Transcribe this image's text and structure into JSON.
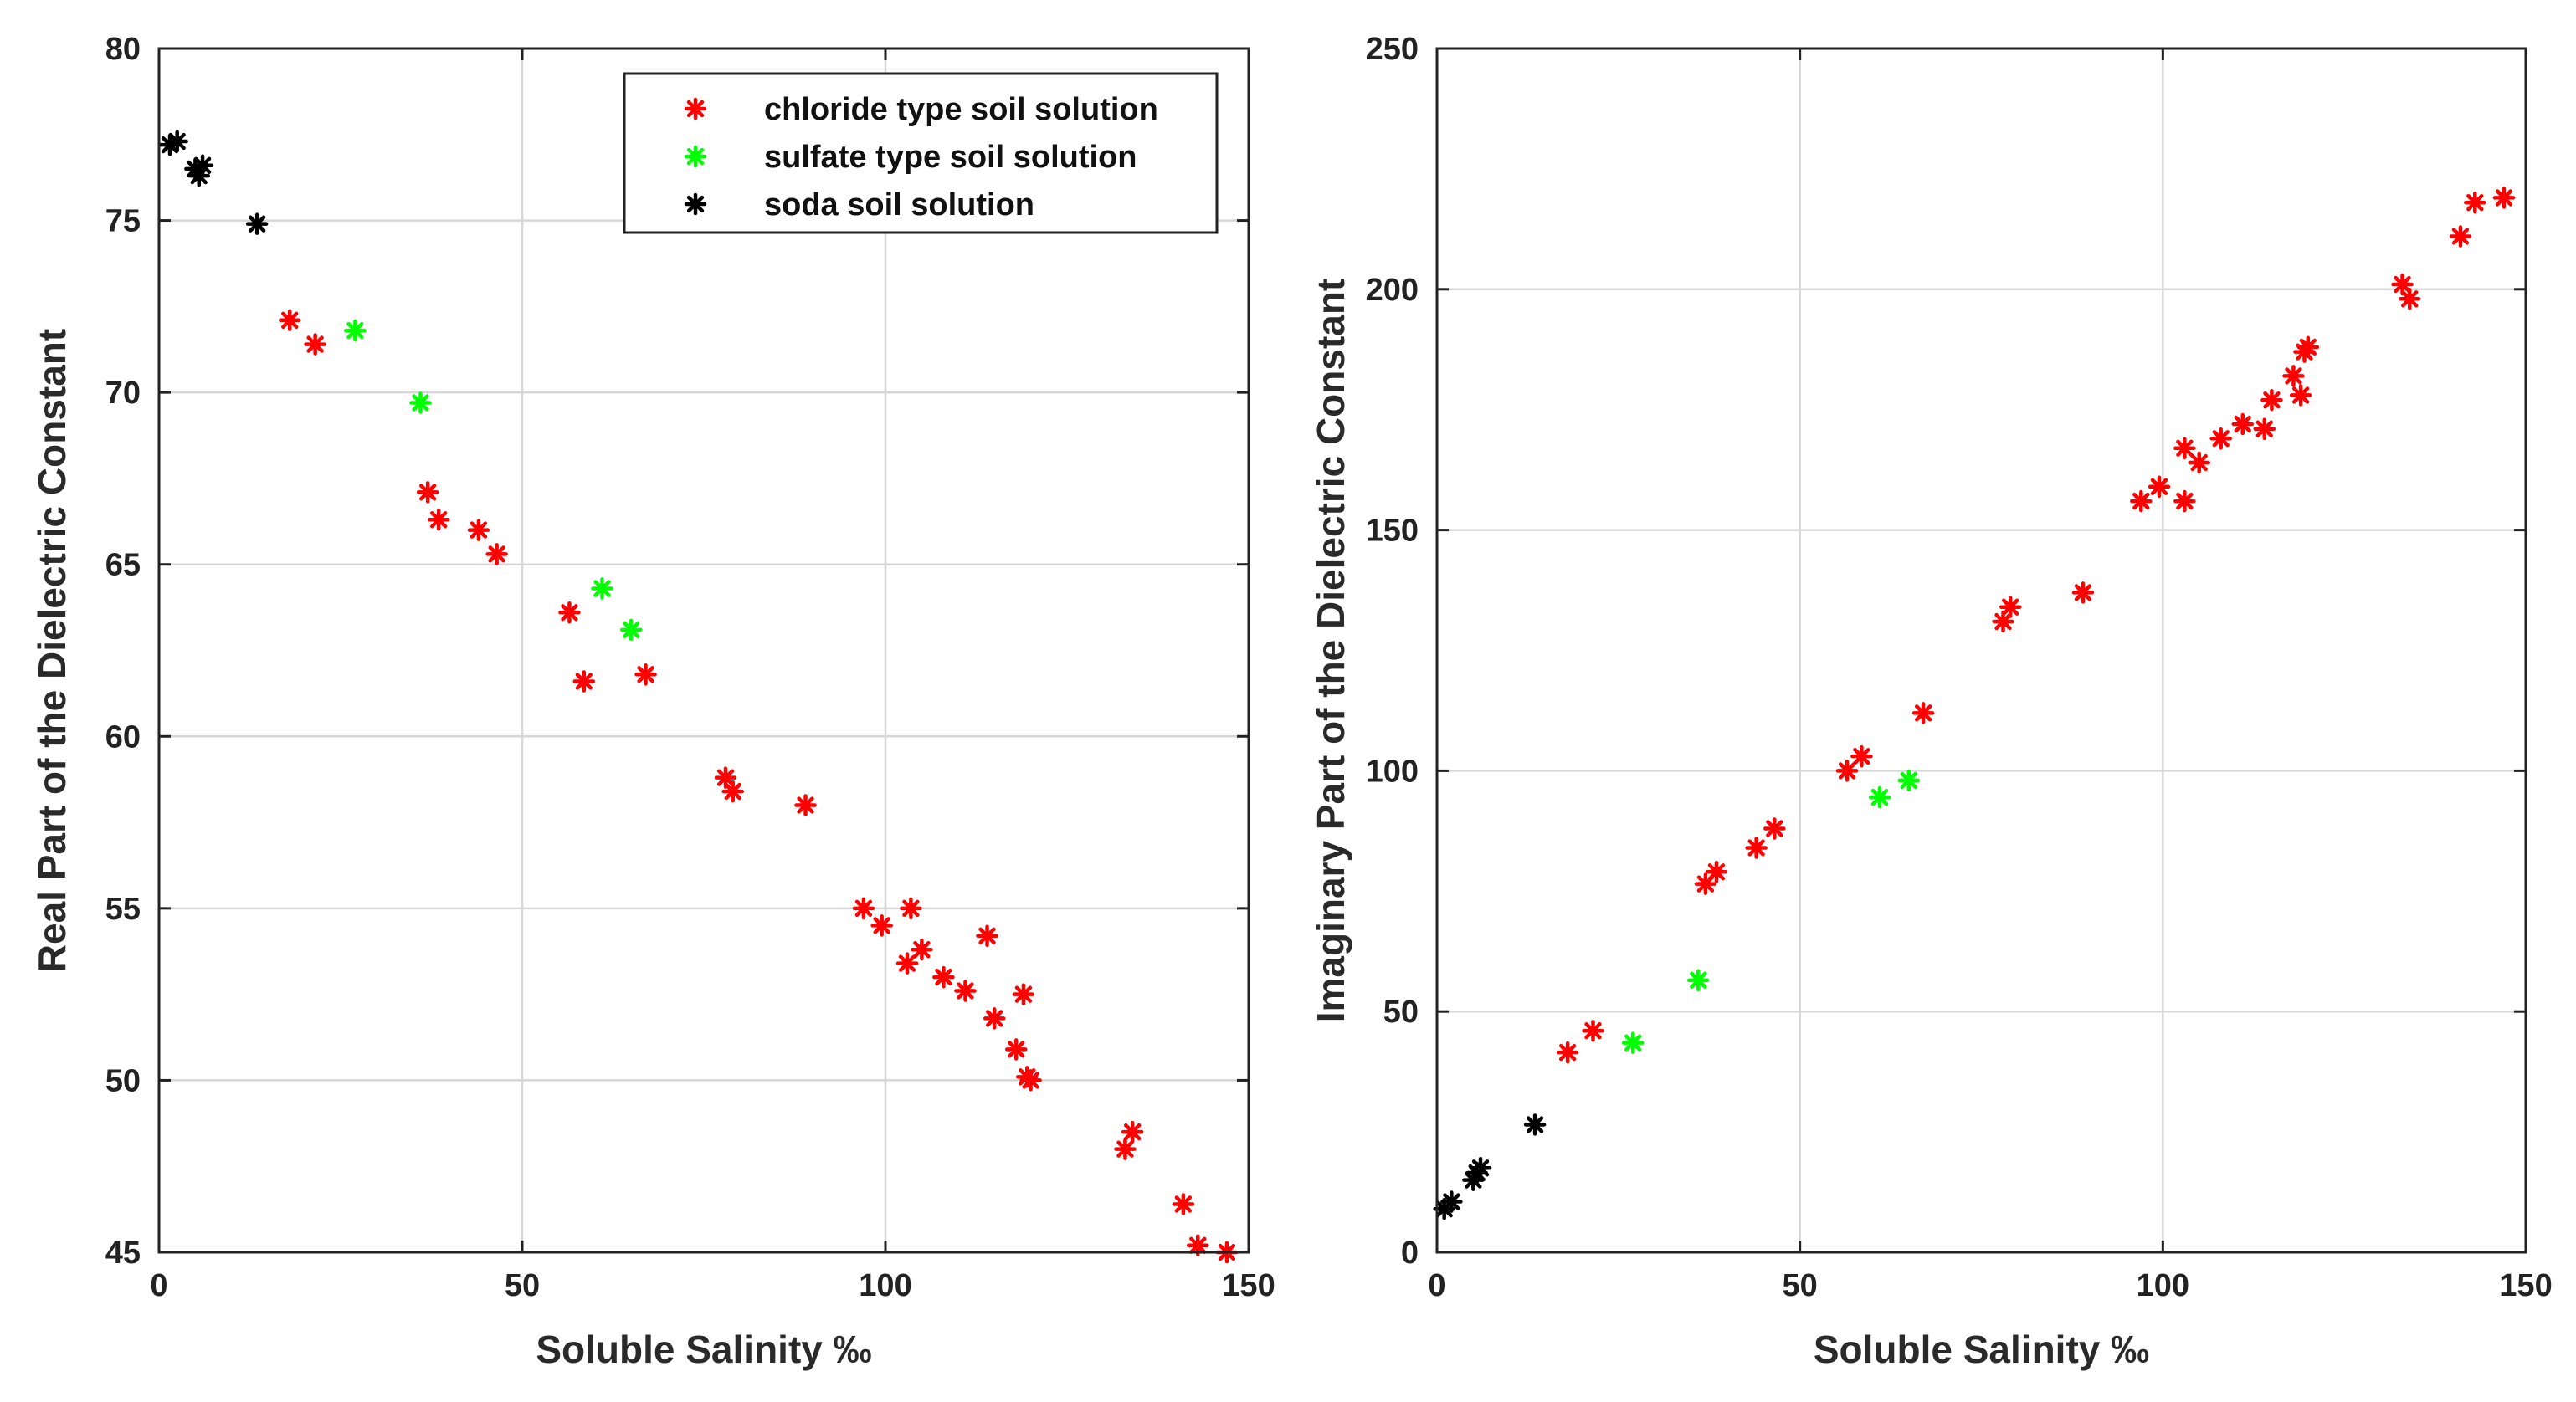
{
  "chart_data": [
    {
      "type": "scatter",
      "xlabel": "Soluble Salinity ‰",
      "ylabel": "Real Part of the Dielectric Constant",
      "xlim": [
        0,
        150
      ],
      "ylim": [
        45,
        80
      ],
      "xticks": [
        0,
        50,
        100,
        150
      ],
      "yticks": [
        45,
        50,
        55,
        60,
        65,
        70,
        75,
        80
      ],
      "grid": true,
      "legend_position": "top-right",
      "series": [
        {
          "name": "chloride type soil solution",
          "color": "#ff0000",
          "marker": "asterisk",
          "points": [
            [
              18,
              72.1
            ],
            [
              21.5,
              71.4
            ],
            [
              37,
              67.1
            ],
            [
              38.5,
              66.3
            ],
            [
              44,
              66.0
            ],
            [
              46.5,
              65.3
            ],
            [
              56.5,
              63.6
            ],
            [
              58.5,
              61.6
            ],
            [
              67,
              61.8
            ],
            [
              78,
              58.8
            ],
            [
              79,
              58.4
            ],
            [
              89,
              58.0
            ],
            [
              97,
              55.0
            ],
            [
              99.5,
              54.5
            ],
            [
              103,
              53.4
            ],
            [
              103.5,
              55.0
            ],
            [
              105,
              53.8
            ],
            [
              108,
              53.0
            ],
            [
              111,
              52.6
            ],
            [
              114,
              54.2
            ],
            [
              115,
              51.8
            ],
            [
              118,
              50.9
            ],
            [
              119,
              52.5
            ],
            [
              119.5,
              50.1
            ],
            [
              120,
              50.0
            ],
            [
              133,
              48.0
            ],
            [
              134,
              48.5
            ],
            [
              141,
              46.4
            ],
            [
              143,
              45.2
            ],
            [
              147,
              45.0
            ]
          ]
        },
        {
          "name": "sulfate type soil solution",
          "color": "#00ff00",
          "marker": "asterisk",
          "points": [
            [
              27,
              71.8
            ],
            [
              36,
              69.7
            ],
            [
              61,
              64.3
            ],
            [
              65,
              63.1
            ]
          ]
        },
        {
          "name": "soda soil solution",
          "color": "#000000",
          "marker": "asterisk",
          "points": [
            [
              1.5,
              77.2
            ],
            [
              2.5,
              77.3
            ],
            [
              5,
              76.5
            ],
            [
              5.5,
              76.3
            ],
            [
              6,
              76.6
            ],
            [
              13.5,
              74.9
            ]
          ]
        }
      ]
    },
    {
      "type": "scatter",
      "xlabel": "Soluble Salinity ‰",
      "ylabel": "Imaginary Part of the Dielectric Constant",
      "xlim": [
        0,
        150
      ],
      "ylim": [
        0,
        250
      ],
      "xticks": [
        0,
        50,
        100,
        150
      ],
      "yticks": [
        0,
        50,
        100,
        150,
        200,
        250
      ],
      "grid": true,
      "series": [
        {
          "name": "chloride type soil solution",
          "color": "#ff0000",
          "marker": "asterisk",
          "points": [
            [
              18,
              41.5
            ],
            [
              21.5,
              46
            ],
            [
              37,
              76.5
            ],
            [
              38.5,
              79
            ],
            [
              44,
              84
            ],
            [
              46.5,
              88
            ],
            [
              56.5,
              100
            ],
            [
              58.5,
              103
            ],
            [
              67,
              112
            ],
            [
              78,
              131
            ],
            [
              79,
              134
            ],
            [
              89,
              137
            ],
            [
              97,
              156
            ],
            [
              99.5,
              159
            ],
            [
              103,
              156
            ],
            [
              103,
              167
            ],
            [
              105,
              164
            ],
            [
              108,
              169
            ],
            [
              111,
              172
            ],
            [
              114,
              171
            ],
            [
              115,
              177
            ],
            [
              118,
              182
            ],
            [
              119,
              178
            ],
            [
              119.5,
              187
            ],
            [
              120,
              188
            ],
            [
              133,
              201
            ],
            [
              134,
              198
            ],
            [
              141,
              211
            ],
            [
              143,
              218
            ],
            [
              147,
              219
            ]
          ]
        },
        {
          "name": "sulfate type soil solution",
          "color": "#00ff00",
          "marker": "asterisk",
          "points": [
            [
              27,
              43.5
            ],
            [
              36,
              56.5
            ],
            [
              61,
              94.5
            ],
            [
              65,
              98
            ]
          ]
        },
        {
          "name": "soda soil solution",
          "color": "#000000",
          "marker": "asterisk",
          "points": [
            [
              1,
              9
            ],
            [
              2,
              10.5
            ],
            [
              5,
              15
            ],
            [
              5.5,
              16.5
            ],
            [
              6,
              17.5
            ],
            [
              13.5,
              26.5
            ]
          ]
        }
      ]
    }
  ]
}
